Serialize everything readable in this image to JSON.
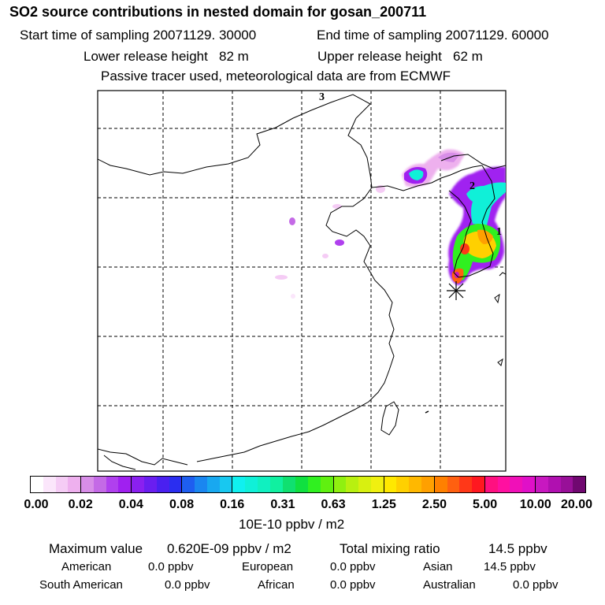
{
  "header": {
    "title": "SO2 source contributions in nested domain for gosan_200711",
    "start_time": "Start time of sampling 20071129. 30000",
    "end_time": "End time of sampling 20071129. 60000",
    "lower_height": "Lower release height   82 m",
    "upper_height": "Upper release height   62 m",
    "tracer_note": "Passive tracer used, meteorological data are from ECMWF"
  },
  "map": {
    "markers": [
      "3",
      "2",
      "1"
    ],
    "receptor_icon": "asterisk-icon"
  },
  "legend": {
    "labels": [
      "0.00",
      "0.02",
      "0.04",
      "0.08",
      "0.16",
      "0.31",
      "0.63",
      "1.25",
      "2.50",
      "5.00",
      "10.00",
      "20.00"
    ],
    "unit": "10E-10 ppbv / m2",
    "colors": [
      [
        "#ffffff",
        "#fbe6fb",
        "#f5ccf5",
        "#eeb0ee"
      ],
      [
        "#d88ee8",
        "#c46ae6",
        "#b040ee",
        "#a020f0"
      ],
      [
        "#8a20f0",
        "#6a1ef0",
        "#4a20f0",
        "#2a2ef0"
      ],
      [
        "#1e5ef0",
        "#1a86f0",
        "#18a8f0",
        "#18c8f0"
      ],
      [
        "#10f0f0",
        "#10f0d8",
        "#10f0c0",
        "#10f0a0"
      ],
      [
        "#10e070",
        "#10e040",
        "#30f020",
        "#60f010"
      ],
      [
        "#90f010",
        "#b8f010",
        "#d8f010",
        "#f0f010"
      ],
      [
        "#ffe800",
        "#ffd000",
        "#ffb800",
        "#ffa000"
      ],
      [
        "#ff8000",
        "#ff6010",
        "#ff3818",
        "#ff1820"
      ],
      [
        "#ff1080",
        "#ff10a0",
        "#f010b8",
        "#e010c8"
      ],
      [
        "#c818c0",
        "#b010b0",
        "#981098",
        "#700870"
      ]
    ]
  },
  "summary": {
    "max_label": "Maximum value",
    "max_value": "0.620E-09 ppbv / m2",
    "total_label": "Total mixing ratio",
    "total_value": "14.5 ppbv",
    "regions": [
      {
        "name": "American",
        "value": "0.0 ppbv"
      },
      {
        "name": "European",
        "value": "0.0 ppbv"
      },
      {
        "name": "Asian",
        "value": "14.5 ppbv"
      },
      {
        "name": "South American",
        "value": "0.0 ppbv"
      },
      {
        "name": "African",
        "value": "0.0 ppbv"
      },
      {
        "name": "Australian",
        "value": "0.0 ppbv"
      }
    ]
  }
}
